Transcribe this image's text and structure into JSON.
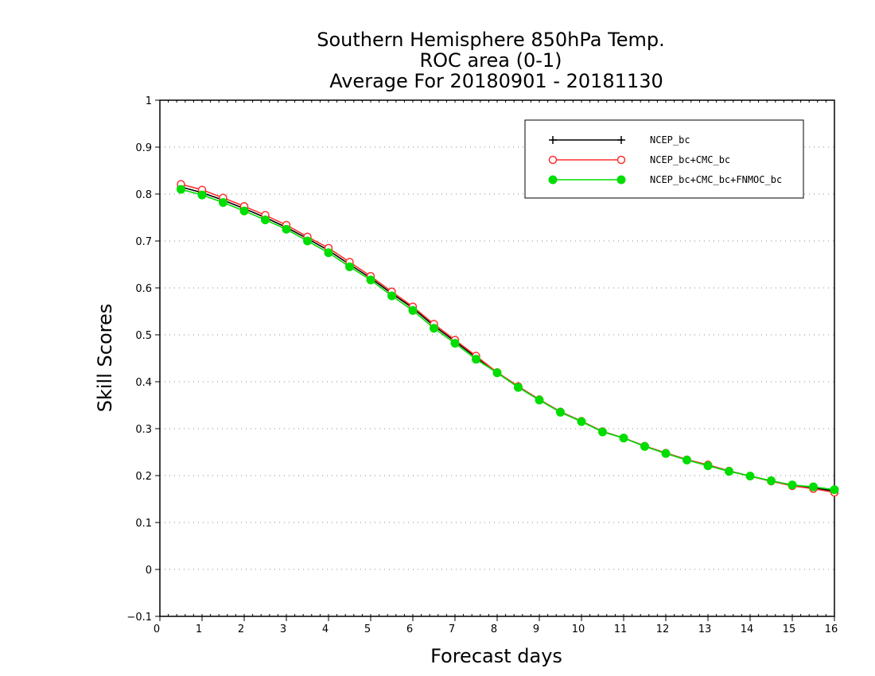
{
  "chart_data": {
    "type": "line",
    "title": [
      "Southern Hemisphere 850hPa Temp.",
      "ROC area (0-1)",
      "Average For 20180901 - 20181130"
    ],
    "xlabel": "Forecast days",
    "ylabel": "Skill Scores",
    "xlim": [
      0,
      16
    ],
    "ylim": [
      -0.1,
      1
    ],
    "xticks": [
      "0",
      "1",
      "2",
      "3",
      "4",
      "5",
      "6",
      "7",
      "8",
      "9",
      "10",
      "11",
      "12",
      "13",
      "14",
      "15",
      "16"
    ],
    "yticks": [
      "−0.1",
      "0",
      "0.1",
      "0.2",
      "0.3",
      "0.4",
      "0.5",
      "0.6",
      "0.7",
      "0.8",
      "0.9",
      "1"
    ],
    "grid": "horizontal dotted",
    "legend_position": "top-right",
    "x": [
      0.5,
      1,
      1.5,
      2,
      2.5,
      3,
      3.5,
      4,
      4.5,
      5,
      5.5,
      6,
      6.5,
      7,
      7.5,
      8,
      8.5,
      9,
      9.5,
      10,
      10.5,
      11,
      11.5,
      12,
      12.5,
      13,
      13.5,
      14,
      14.5,
      15,
      15.5,
      16
    ],
    "series": [
      {
        "name": "NCEP_bc",
        "color": "#000000",
        "marker": "plus",
        "values": [
          0.815,
          0.803,
          0.787,
          0.769,
          0.75,
          0.729,
          0.705,
          0.68,
          0.65,
          0.621,
          0.588,
          0.557,
          0.519,
          0.486,
          0.452,
          0.42,
          0.39,
          0.362,
          0.336,
          0.316,
          0.294,
          0.28,
          0.263,
          0.248,
          0.234,
          0.222,
          0.21,
          0.199,
          0.188,
          0.18,
          0.174,
          0.167
        ]
      },
      {
        "name": "NCEP_bc+CMC_bc",
        "color": "#ff3030",
        "marker": "open-circle",
        "values": [
          0.821,
          0.809,
          0.792,
          0.774,
          0.755,
          0.734,
          0.709,
          0.685,
          0.655,
          0.625,
          0.592,
          0.56,
          0.523,
          0.489,
          0.455,
          0.42,
          0.39,
          0.362,
          0.336,
          0.316,
          0.294,
          0.28,
          0.263,
          0.248,
          0.234,
          0.223,
          0.21,
          0.199,
          0.188,
          0.178,
          0.172,
          0.164
        ]
      },
      {
        "name": "NCEP_bc+CMC_bc+FNMOC_bc",
        "color": "#00dd00",
        "marker": "filled-circle",
        "values": [
          0.81,
          0.798,
          0.782,
          0.764,
          0.745,
          0.725,
          0.7,
          0.675,
          0.645,
          0.617,
          0.583,
          0.552,
          0.514,
          0.482,
          0.448,
          0.419,
          0.388,
          0.361,
          0.335,
          0.315,
          0.293,
          0.28,
          0.262,
          0.247,
          0.233,
          0.221,
          0.209,
          0.199,
          0.189,
          0.18,
          0.176,
          0.17
        ]
      }
    ]
  }
}
